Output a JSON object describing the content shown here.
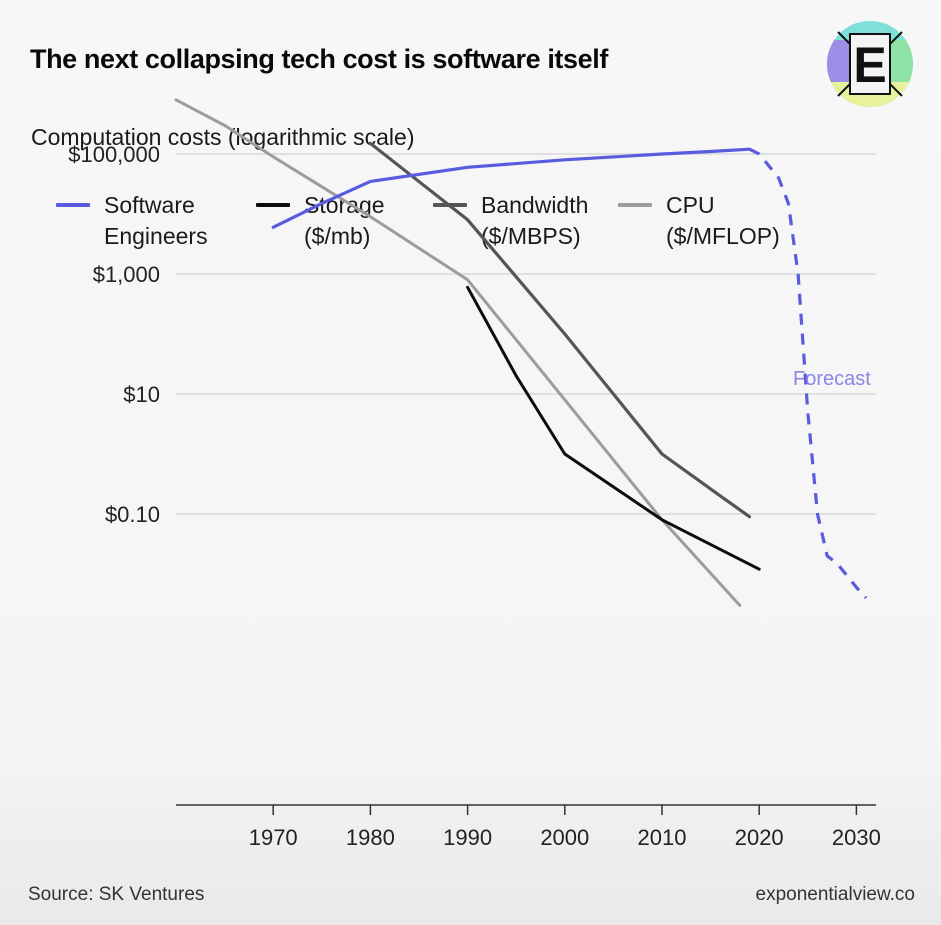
{
  "header": {
    "title": "The next collapsing tech cost is software itself",
    "logo_letter": "E"
  },
  "footer": {
    "source": "Source: SK Ventures",
    "site": "exponentialview.co"
  },
  "colors": {
    "software": "#5a5ce0",
    "storage": "#0d0d0d",
    "bandwidth": "#555559",
    "cpu": "#9c9c9e",
    "grid": "#d9d9d9",
    "axis": "#333333",
    "logo_purple": "#9b8ee6",
    "logo_cyan": "#7fe0d8",
    "logo_green": "#8fe3a6",
    "logo_yellow": "#e8f29a"
  },
  "chart_data": {
    "type": "line",
    "title": "The next collapsing tech cost is software itself",
    "ylabel": "Computation costs (logarithmic scale)",
    "xlabel": "",
    "y_scale": "log",
    "xlim": [
      1960,
      2032
    ],
    "ylim": [
      0.003,
      1000000
    ],
    "x_ticks": [
      1970,
      1980,
      1990,
      2000,
      2010,
      2020,
      2030
    ],
    "y_ticks": [
      {
        "value": 100000,
        "label": "$100,000"
      },
      {
        "value": 1000,
        "label": "$1,000"
      },
      {
        "value": 10,
        "label": "$10"
      },
      {
        "value": 0.1,
        "label": "$0.10"
      }
    ],
    "grid": true,
    "legend_position": "top-left",
    "annotation": "Forecast",
    "series": [
      {
        "key": "software",
        "name": "Software\nEngineers",
        "x": [
          1970,
          1975,
          1980,
          1990,
          2000,
          2010,
          2015,
          2019
        ],
        "y": [
          6000,
          15000,
          35000,
          60000,
          80000,
          100000,
          110000,
          120000
        ]
      },
      {
        "key": "software_forecast",
        "name": "",
        "dashed": true,
        "x": [
          2019,
          2020,
          2022,
          2023,
          2024,
          2025,
          2026,
          2027,
          2028,
          2030,
          2031
        ],
        "y": [
          120000,
          100000,
          40000,
          15000,
          1000,
          5,
          0.1,
          0.02,
          0.015,
          0.006,
          0.004
        ]
      },
      {
        "key": "storage",
        "name": "Storage\n($/mb)",
        "x": [
          1990,
          1995,
          2000,
          2010,
          2020
        ],
        "y": [
          600,
          20,
          1,
          0.08,
          0.012
        ]
      },
      {
        "key": "bandwidth",
        "name": "Bandwidth\n($/MBPS)",
        "x": [
          1980,
          1990,
          2000,
          2010,
          2016,
          2019
        ],
        "y": [
          150000,
          8000,
          100,
          1,
          0.2,
          0.09
        ]
      },
      {
        "key": "cpu",
        "name": "CPU\n($/MFLOP)",
        "x": [
          1960,
          1965,
          1970,
          1980,
          1990,
          2000,
          2010,
          2018
        ],
        "y": [
          800000,
          300000,
          90000,
          9000,
          800,
          8,
          0.08,
          0.003
        ]
      }
    ]
  }
}
